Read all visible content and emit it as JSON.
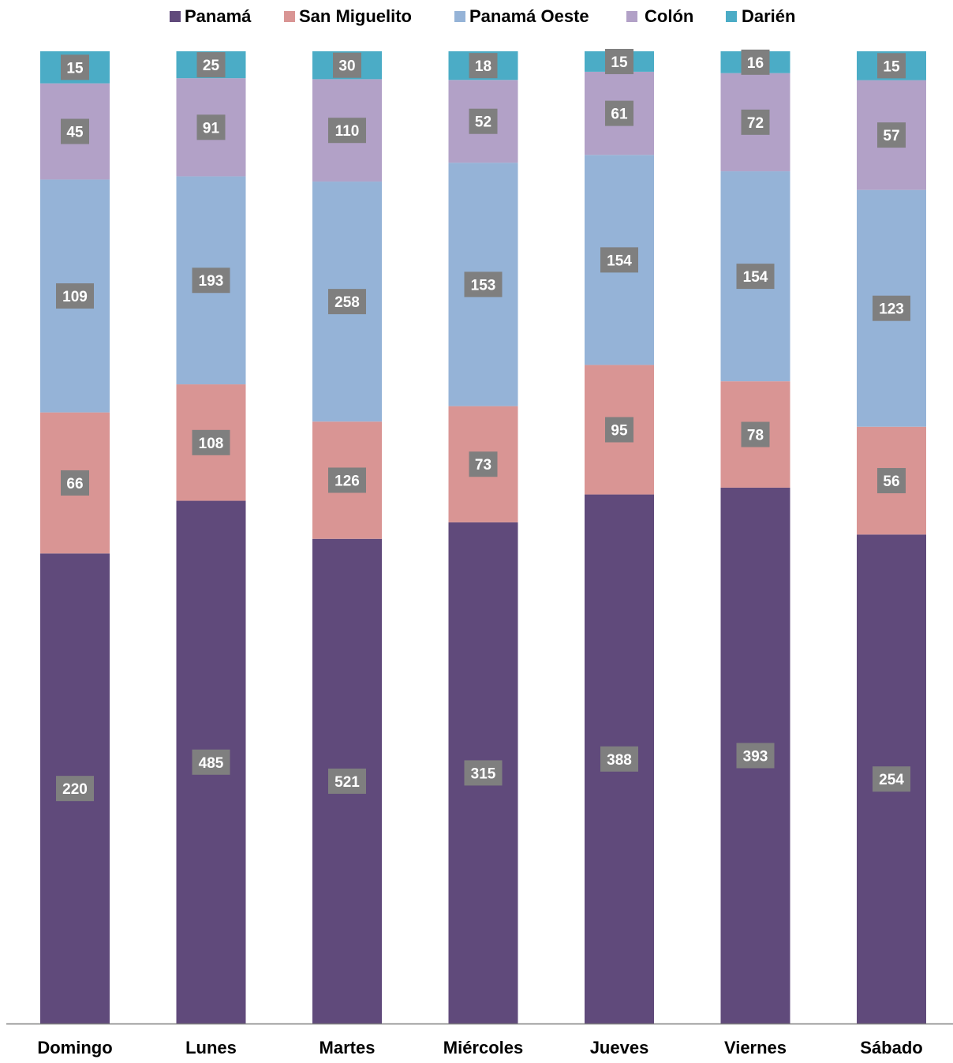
{
  "chart_data": {
    "type": "bar",
    "stacked": true,
    "normalized_percent": true,
    "title": "",
    "xlabel": "",
    "ylabel": "",
    "grid": false,
    "legend_position": "top",
    "data_labels": true,
    "categories": [
      "Domingo",
      "Lunes",
      "Martes",
      "Miércoles",
      "Jueves",
      "Viernes",
      "Sábado"
    ],
    "series": [
      {
        "name": "Panamá",
        "color": "#604a7b",
        "values": [
          220,
          485,
          521,
          315,
          388,
          393,
          254
        ]
      },
      {
        "name": "San Miguelito",
        "color": "#d99594",
        "values": [
          66,
          108,
          126,
          73,
          95,
          78,
          56
        ]
      },
      {
        "name": "Panamá Oeste",
        "color": "#95b3d7",
        "values": [
          109,
          193,
          258,
          153,
          154,
          154,
          123
        ]
      },
      {
        "name": "Colón",
        "color": "#b2a1c7",
        "values": [
          45,
          91,
          110,
          52,
          61,
          72,
          57
        ]
      },
      {
        "name": "Darién",
        "color": "#4bacc6",
        "values": [
          15,
          25,
          30,
          18,
          15,
          16,
          15
        ]
      }
    ],
    "label_box_color": "#7f7f7f",
    "axis_line_color": "#7f7f7f"
  }
}
